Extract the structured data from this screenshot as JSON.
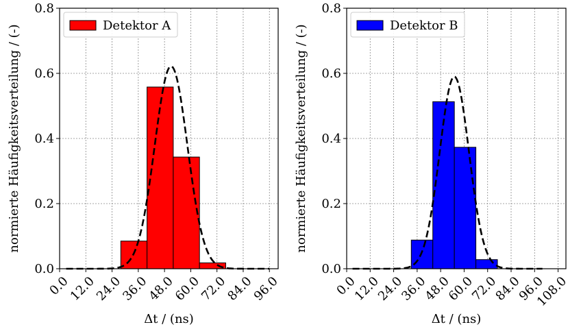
{
  "chart_data": [
    {
      "type": "bar",
      "legend": "Detektor A",
      "legend_position": "top-left",
      "color": "#ff0000",
      "xlabel": "Δt / (ns)",
      "ylabel": "normierte Häufigkeitsverteilung / (-)",
      "xlim": [
        0,
        100
      ],
      "ylim": [
        0,
        0.8
      ],
      "xticks": [
        "0.0",
        "12.0",
        "24.0",
        "36.0",
        "48.0",
        "60.0",
        "72.0",
        "84.0",
        "96.0"
      ],
      "yticks": [
        "0.0",
        "0.2",
        "0.4",
        "0.6",
        "0.8"
      ],
      "grid": true,
      "bins": [
        {
          "x0": 28,
          "x1": 40,
          "value": 0.085
        },
        {
          "x0": 40,
          "x1": 52,
          "value": 0.558
        },
        {
          "x0": 52,
          "x1": 64,
          "value": 0.343
        },
        {
          "x0": 64,
          "x1": 76,
          "value": 0.018
        }
      ],
      "fit_curve": {
        "mean": 51,
        "sigma": 7.5,
        "peak": 0.622,
        "x_range": [
          3,
          96
        ]
      }
    },
    {
      "type": "bar",
      "legend": "Detektor B",
      "legend_position": "top-left",
      "color": "#0000ff",
      "xlabel": "Δt / (ns)",
      "ylabel": "normierte Häufigkeitsverteilung / (-)",
      "xlim": [
        0,
        112
      ],
      "ylim": [
        0,
        0.8
      ],
      "xticks": [
        "0.0",
        "12.0",
        "24.0",
        "36.0",
        "48.0",
        "60.0",
        "72.0",
        "84.0",
        "96.0",
        "108.0"
      ],
      "yticks": [
        "0.0",
        "0.2",
        "0.4",
        "0.6",
        "0.8"
      ],
      "grid": true,
      "bins": [
        {
          "x0": 33,
          "x1": 44,
          "value": 0.088
        },
        {
          "x0": 44,
          "x1": 55,
          "value": 0.513
        },
        {
          "x0": 55,
          "x1": 66,
          "value": 0.373
        },
        {
          "x0": 66,
          "x1": 77,
          "value": 0.028
        }
      ],
      "fit_curve": {
        "mean": 55,
        "sigma": 7.5,
        "peak": 0.59,
        "x_range": [
          3,
          100
        ]
      }
    }
  ]
}
